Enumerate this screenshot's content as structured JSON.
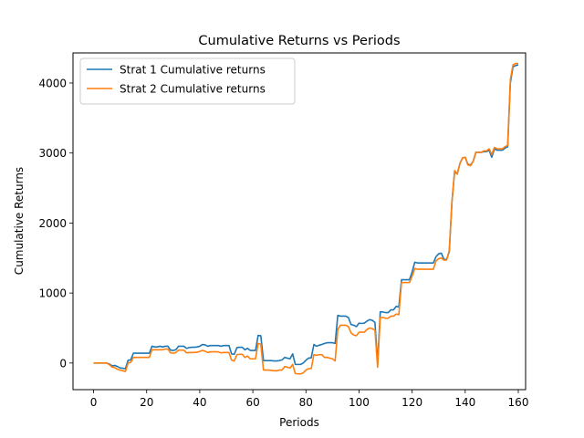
{
  "chart_data": {
    "type": "line",
    "title": "Cumulative Returns vs Periods",
    "xlabel": "Periods",
    "ylabel": "Cumulative Returns",
    "xlim": [
      -7.75,
      162.75
    ],
    "ylim": [
      -380,
      4430
    ],
    "xticks": [
      0,
      20,
      40,
      60,
      80,
      100,
      120,
      140,
      160
    ],
    "yticks": [
      0,
      1000,
      2000,
      3000,
      4000
    ],
    "grid": false,
    "legend_position": "top-left",
    "series": [
      {
        "name": "Strat 1 Cumulative returns",
        "color": "#1f77b4",
        "values": [
          0,
          0,
          0,
          0,
          0,
          0,
          -15,
          -40,
          -35,
          -50,
          -70,
          -75,
          -80,
          40,
          45,
          140,
          140,
          140,
          140,
          140,
          140,
          140,
          240,
          230,
          230,
          240,
          230,
          240,
          240,
          185,
          180,
          190,
          240,
          240,
          240,
          210,
          220,
          225,
          225,
          230,
          240,
          265,
          260,
          240,
          250,
          250,
          250,
          250,
          240,
          250,
          250,
          250,
          130,
          125,
          220,
          225,
          225,
          190,
          210,
          180,
          180,
          180,
          395,
          390,
          35,
          35,
          35,
          35,
          30,
          30,
          35,
          45,
          80,
          70,
          60,
          130,
          -20,
          -20,
          -20,
          0,
          40,
          70,
          75,
          265,
          240,
          255,
          265,
          280,
          290,
          290,
          290,
          280,
          680,
          670,
          670,
          670,
          650,
          550,
          540,
          520,
          570,
          565,
          570,
          600,
          620,
          610,
          580,
          -10,
          730,
          730,
          720,
          720,
          760,
          760,
          810,
          800,
          1190,
          1190,
          1190,
          1190,
          1300,
          1440,
          1430,
          1430,
          1430,
          1430,
          1430,
          1430,
          1430,
          1520,
          1560,
          1570,
          1480,
          1480,
          1590,
          2300,
          2730,
          2700,
          2850,
          2930,
          2940,
          2840,
          2830,
          2880,
          3010,
          3010,
          3010,
          3020,
          3020,
          3040,
          2940,
          3060,
          3040,
          3040,
          3040,
          3070,
          3090,
          4000,
          4230,
          4250,
          4260
        ]
      },
      {
        "name": "Strat 2 Cumulative returns",
        "color": "#ff7f0e",
        "values": [
          0,
          0,
          0,
          0,
          0,
          0,
          -25,
          -60,
          -65,
          -90,
          -100,
          -110,
          -120,
          0,
          10,
          80,
          80,
          80,
          80,
          80,
          80,
          80,
          190,
          190,
          190,
          190,
          190,
          200,
          200,
          145,
          140,
          150,
          185,
          185,
          185,
          145,
          150,
          150,
          150,
          155,
          165,
          180,
          170,
          150,
          160,
          160,
          160,
          160,
          145,
          150,
          150,
          150,
          40,
          30,
          120,
          125,
          125,
          80,
          100,
          60,
          60,
          60,
          280,
          270,
          -100,
          -100,
          -100,
          -105,
          -110,
          -110,
          -100,
          -100,
          -50,
          -60,
          -70,
          -20,
          -150,
          -155,
          -155,
          -140,
          -100,
          -80,
          -80,
          120,
          110,
          120,
          120,
          80,
          80,
          70,
          60,
          30,
          480,
          540,
          540,
          540,
          520,
          430,
          400,
          390,
          440,
          440,
          440,
          480,
          500,
          490,
          470,
          -60,
          650,
          650,
          640,
          640,
          670,
          670,
          700,
          690,
          1150,
          1150,
          1150,
          1150,
          1240,
          1350,
          1340,
          1340,
          1340,
          1340,
          1340,
          1340,
          1340,
          1460,
          1490,
          1500,
          1470,
          1470,
          1610,
          2300,
          2750,
          2700,
          2850,
          2930,
          2940,
          2830,
          2820,
          2880,
          3010,
          3010,
          3010,
          3030,
          3030,
          3060,
          2980,
          3080,
          3060,
          3060,
          3060,
          3090,
          3110,
          4050,
          4260,
          4280,
          4280
        ]
      }
    ]
  }
}
